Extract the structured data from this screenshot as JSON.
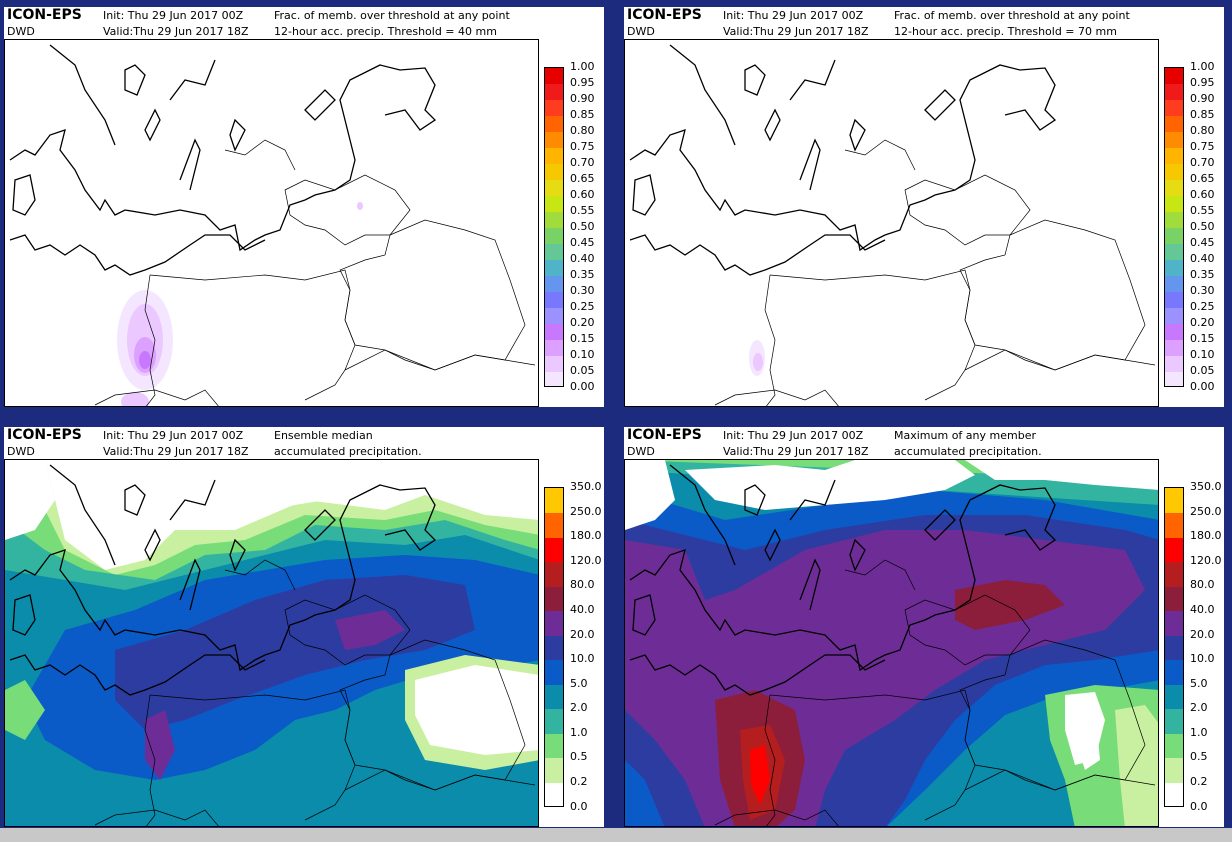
{
  "panels": [
    {
      "model": "ICON-EPS",
      "org": "DWD",
      "init": "Init:  Thu 29 Jun 2017 00Z",
      "valid": "Valid:Thu 29 Jun 2017 18Z",
      "title1": "Frac. of memb. over threshold at any point",
      "title2": "12-hour acc. precip. Threshold = 40 mm",
      "colorbar": [
        "1.00",
        "0.95",
        "0.90",
        "0.85",
        "0.80",
        "0.75",
        "0.70",
        "0.65",
        "0.60",
        "0.55",
        "0.50",
        "0.45",
        "0.40",
        "0.35",
        "0.30",
        "0.25",
        "0.20",
        "0.15",
        "0.10",
        "0.05",
        "0.00"
      ],
      "colors": [
        "#e60000",
        "#f01a1a",
        "#ff3c1e",
        "#ff6400",
        "#ff8c00",
        "#ffb400",
        "#f5c800",
        "#e6dc14",
        "#c8e614",
        "#a0dc3c",
        "#78d264",
        "#64c896",
        "#50b4c8",
        "#6496f0",
        "#7878ff",
        "#9b91ff",
        "#c878ff",
        "#dca0ff",
        "#ebc8ff",
        "#f5e6ff"
      ]
    },
    {
      "model": "ICON-EPS",
      "org": "DWD",
      "init": "Init:  Thu 29 Jun 2017 00Z",
      "valid": "Valid:Thu 29 Jun 2017 18Z",
      "title1": "Frac. of memb. over threshold at any point",
      "title2": "12-hour acc. precip. Threshold = 70 mm",
      "colorbar": [
        "1.00",
        "0.95",
        "0.90",
        "0.85",
        "0.80",
        "0.75",
        "0.70",
        "0.65",
        "0.60",
        "0.55",
        "0.50",
        "0.45",
        "0.40",
        "0.35",
        "0.30",
        "0.25",
        "0.20",
        "0.15",
        "0.10",
        "0.05",
        "0.00"
      ],
      "colors": [
        "#e60000",
        "#f01a1a",
        "#ff3c1e",
        "#ff6400",
        "#ff8c00",
        "#ffb400",
        "#f5c800",
        "#e6dc14",
        "#c8e614",
        "#a0dc3c",
        "#78d264",
        "#64c896",
        "#50b4c8",
        "#6496f0",
        "#7878ff",
        "#9b91ff",
        "#c878ff",
        "#dca0ff",
        "#ebc8ff",
        "#f5e6ff"
      ]
    },
    {
      "model": "ICON-EPS",
      "org": "DWD",
      "init": "Init:  Thu 29 Jun 2017 00Z",
      "valid": "Valid:Thu 29 Jun 2017 18Z",
      "title1": "Ensemble median",
      "title2": "accumulated precipitation.",
      "colorbar": [
        "350.0",
        "250.0",
        "180.0",
        "120.0",
        "80.0",
        "40.0",
        "20.0",
        "10.0",
        "5.0",
        "2.0",
        "1.0",
        "0.5",
        "0.2",
        "0.0"
      ],
      "colors": [
        "#ffc800",
        "#ff6400",
        "#ff0000",
        "#b41e1e",
        "#8c1e3c",
        "#6e2d96",
        "#2d3ca0",
        "#0a5ac8",
        "#0a8caa",
        "#32b4a0",
        "#78dc78",
        "#c8f0a0",
        "#ffffff"
      ]
    },
    {
      "model": "ICON-EPS",
      "org": "DWD",
      "init": "Init:  Thu 29 Jun 2017 00Z",
      "valid": "Valid:Thu 29 Jun 2017 18Z",
      "title1": "Maximum of any member",
      "title2": "accumulated precipitation.",
      "colorbar": [
        "350.0",
        "250.0",
        "180.0",
        "120.0",
        "80.0",
        "40.0",
        "20.0",
        "10.0",
        "5.0",
        "2.0",
        "1.0",
        "0.5",
        "0.2",
        "0.0"
      ],
      "colors": [
        "#ffc800",
        "#ff6400",
        "#ff0000",
        "#b41e1e",
        "#8c1e3c",
        "#6e2d96",
        "#2d3ca0",
        "#0a5ac8",
        "#0a8caa",
        "#32b4a0",
        "#78dc78",
        "#c8f0a0",
        "#ffffff"
      ]
    }
  ]
}
